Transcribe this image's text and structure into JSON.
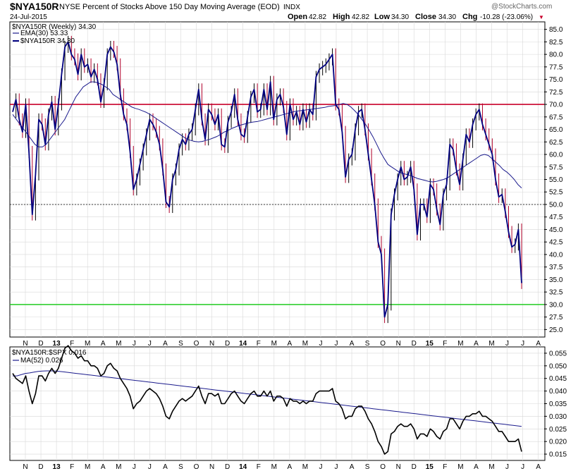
{
  "header": {
    "symbol": "$NYA150R",
    "description": "NYSE Percent of Stocks Above 150 Day Moving Average (EOD)",
    "exchange": "INDX",
    "date": "24-Jul-2015",
    "watermark": "@StockCharts.com",
    "open_label": "Open",
    "open": "42.82",
    "high_label": "High",
    "high": "42.82",
    "low_label": "Low",
    "low": "34.30",
    "close_label": "Close",
    "close": "34.30",
    "chg_label": "Chg",
    "chg": "-10.28 (-23.06%)",
    "chg_arrow": "▼"
  },
  "colors": {
    "price_line": "#000080",
    "ema_line": "#1a1a8c",
    "up_bar": "#000000",
    "down_bar": "#b0002a",
    "red_level": "#c8002a",
    "green_level": "#22cc22",
    "dotted_level": "#000000",
    "ratio_line": "#000000",
    "ma_line": "#1a1a8c",
    "grid": "#d8d8d8"
  },
  "x_axis": {
    "labels": [
      "N",
      "D",
      "13",
      "F",
      "M",
      "A",
      "M",
      "J",
      "J",
      "A",
      "S",
      "O",
      "N",
      "D",
      "14",
      "F",
      "M",
      "A",
      "M",
      "J",
      "J",
      "A",
      "S",
      "O",
      "N",
      "D",
      "15",
      "F",
      "M",
      "A",
      "M",
      "J",
      "J",
      "A"
    ],
    "bold": [
      "13",
      "14",
      "15"
    ]
  },
  "chart_data": [
    {
      "type": "line",
      "title": "$NYA150R (Weekly) 34.30",
      "legend": [
        {
          "name": "EMA(30) 53.33"
        },
        {
          "name": "$NYA150R 34.30"
        }
      ],
      "y_ticks": [
        "85.0",
        "82.5",
        "80.0",
        "77.5",
        "75.0",
        "72.5",
        "70.0",
        "67.5",
        "65.0",
        "62.5",
        "60.0",
        "57.5",
        "55.0",
        "52.5",
        "50.0",
        "47.5",
        "45.0",
        "42.5",
        "40.0",
        "37.5",
        "35.0",
        "32.5",
        "30.0",
        "27.5",
        "25.0"
      ],
      "ylim": [
        23.5,
        86.5
      ],
      "levels": {
        "red": 70,
        "dotted": 50,
        "green": 30
      },
      "x_range": [
        0,
        140
      ],
      "series": [
        {
          "key": "close",
          "values": [
            68.5,
            71.0,
            67.0,
            64.5,
            70.0,
            60.5,
            48.0,
            56.0,
            67.0,
            66.0,
            62.0,
            68.0,
            70.5,
            65.0,
            70.0,
            76.0,
            81.5,
            82.5,
            80.0,
            79.0,
            76.0,
            80.0,
            77.5,
            78.0,
            75.5,
            77.0,
            75.0,
            70.5,
            74.0,
            80.0,
            81.5,
            80.5,
            78.0,
            72.0,
            68.0,
            66.0,
            60.5,
            53.0,
            55.0,
            58.0,
            61.0,
            64.0,
            67.0,
            66.0,
            64.5,
            62.0,
            57.0,
            50.5,
            49.5,
            55.0,
            57.0,
            61.0,
            63.0,
            62.0,
            64.0,
            65.0,
            69.0,
            73.0,
            67.0,
            63.0,
            69.0,
            68.0,
            66.0,
            68.0,
            62.0,
            61.5,
            66.5,
            68.5,
            72.0,
            67.0,
            64.0,
            63.5,
            67.5,
            71.5,
            73.0,
            68.5,
            69.0,
            73.0,
            69.0,
            74.5,
            67.0,
            71.0,
            72.0,
            69.5,
            64.0,
            70.0,
            67.0,
            68.5,
            66.0,
            69.0,
            66.5,
            69.0,
            68.0,
            75.5,
            77.0,
            77.5,
            78.0,
            79.0,
            80.0,
            70.0,
            69.0,
            64.5,
            55.5,
            59.0,
            60.0,
            65.0,
            68.5,
            69.0,
            65.0,
            60.0,
            55.0,
            50.0,
            42.5,
            40.0,
            27.5,
            30.0,
            48.0,
            52.0,
            55.0,
            57.5,
            55.0,
            55.5,
            57.5,
            53.0,
            44.0,
            50.0,
            50.0,
            47.5,
            54.0,
            53.0,
            49.0,
            46.0,
            52.0,
            54.0,
            62.0,
            61.0,
            57.0,
            54.0,
            59.0,
            64.0,
            62.5,
            66.0,
            68.0,
            69.0,
            66.0,
            64.0,
            62.0,
            60.0,
            55.0,
            51.5,
            52.0,
            48.5,
            44.5,
            41.5,
            42.0,
            45.0,
            34.3
          ]
        },
        {
          "key": "ema30",
          "values": [
            68.0,
            67.0,
            66.0,
            65.0,
            64.0,
            63.0,
            62.0,
            61.5,
            61.5,
            62.0,
            63.0,
            64.0,
            65.0,
            66.0,
            67.0,
            68.5,
            70.0,
            71.5,
            72.5,
            73.5,
            74.0,
            74.5,
            74.5,
            74.3,
            74.0,
            73.5,
            73.0,
            72.0,
            71.5,
            71.0,
            70.5,
            70.0,
            69.5,
            69.2,
            69.0,
            68.7,
            68.4,
            68.0,
            67.5,
            67.0,
            66.5,
            66.0,
            65.5,
            65.0,
            64.5,
            64.0,
            63.5,
            63.0,
            62.8,
            62.6,
            62.5,
            62.6,
            62.8,
            63.0,
            63.3,
            63.6,
            64.0,
            64.5,
            64.8,
            65.2,
            65.5,
            65.8,
            66.0,
            66.2,
            66.4,
            66.5,
            66.6,
            66.8,
            67.0,
            67.2,
            67.4,
            67.6,
            67.8,
            68.0,
            68.2,
            68.4,
            68.6,
            68.7,
            68.8,
            68.9,
            69.0,
            69.1,
            69.2,
            69.3,
            69.4,
            69.6,
            69.7,
            69.8,
            70.0,
            70.2,
            70.0,
            69.5,
            68.8,
            68.0,
            67.0,
            66.0,
            64.8,
            63.5,
            62.0,
            60.5,
            59.2,
            58.0,
            57.5,
            57.0,
            56.5,
            56.2,
            56.0,
            55.8,
            55.5,
            55.2,
            55.0,
            54.8,
            54.6,
            54.5,
            54.6,
            54.8,
            55.0,
            55.3,
            55.8,
            56.3,
            56.8,
            57.3,
            57.8,
            58.3,
            58.8,
            59.3,
            59.8,
            60.0,
            59.8,
            59.2,
            58.5,
            57.8,
            57.0,
            56.5,
            55.8,
            55.0,
            54.0,
            53.3
          ]
        }
      ]
    },
    {
      "type": "line",
      "title": "$NYA150R:$SPX 0.016",
      "legend": [
        {
          "name": "MA(52) 0.026"
        }
      ],
      "y_ticks": [
        "0.055",
        "0.050",
        "0.045",
        "0.040",
        "0.035",
        "0.030",
        "0.025",
        "0.020",
        "0.015"
      ],
      "ylim": [
        0.0125,
        0.0575
      ],
      "x_range": [
        0,
        140
      ],
      "series": [
        {
          "key": "ratio",
          "values": [
            0.047,
            0.045,
            0.044,
            0.043,
            0.046,
            0.04,
            0.035,
            0.039,
            0.046,
            0.046,
            0.044,
            0.047,
            0.049,
            0.047,
            0.049,
            0.053,
            0.057,
            0.058,
            0.056,
            0.055,
            0.053,
            0.054,
            0.052,
            0.052,
            0.05,
            0.05,
            0.049,
            0.046,
            0.047,
            0.05,
            0.051,
            0.049,
            0.048,
            0.045,
            0.043,
            0.041,
            0.038,
            0.033,
            0.035,
            0.036,
            0.038,
            0.04,
            0.041,
            0.04,
            0.039,
            0.037,
            0.034,
            0.03,
            0.029,
            0.032,
            0.034,
            0.036,
            0.037,
            0.036,
            0.037,
            0.038,
            0.04,
            0.042,
            0.038,
            0.035,
            0.039,
            0.039,
            0.038,
            0.039,
            0.035,
            0.035,
            0.037,
            0.039,
            0.04,
            0.038,
            0.036,
            0.035,
            0.037,
            0.039,
            0.04,
            0.038,
            0.038,
            0.04,
            0.038,
            0.04,
            0.036,
            0.038,
            0.038,
            0.037,
            0.034,
            0.037,
            0.036,
            0.036,
            0.035,
            0.036,
            0.035,
            0.036,
            0.036,
            0.039,
            0.04,
            0.04,
            0.04,
            0.04,
            0.041,
            0.036,
            0.035,
            0.033,
            0.029,
            0.03,
            0.03,
            0.033,
            0.034,
            0.034,
            0.032,
            0.029,
            0.027,
            0.024,
            0.02,
            0.018,
            0.015,
            0.016,
            0.023,
            0.024,
            0.026,
            0.027,
            0.026,
            0.026,
            0.027,
            0.025,
            0.021,
            0.023,
            0.023,
            0.022,
            0.025,
            0.024,
            0.022,
            0.021,
            0.024,
            0.025,
            0.029,
            0.029,
            0.027,
            0.025,
            0.028,
            0.03,
            0.03,
            0.031,
            0.031,
            0.032,
            0.03,
            0.03,
            0.029,
            0.028,
            0.026,
            0.024,
            0.024,
            0.022,
            0.02,
            0.02,
            0.02,
            0.021,
            0.016
          ]
        },
        {
          "key": "ma52",
          "values": [
            0.046,
            0.046,
            0.0465,
            0.047,
            0.0472,
            0.0475,
            0.0478,
            0.0479,
            0.048,
            0.048,
            0.0479,
            0.0478,
            0.0476,
            0.0474,
            0.0472,
            0.047,
            0.0468,
            0.0466,
            0.0464,
            0.0462,
            0.046,
            0.0458,
            0.0456,
            0.0454,
            0.0452,
            0.045,
            0.0448,
            0.0446,
            0.0444,
            0.0442,
            0.044,
            0.0438,
            0.0436,
            0.0434,
            0.0432,
            0.043,
            0.0428,
            0.0426,
            0.0424,
            0.0422,
            0.042,
            0.0418,
            0.0416,
            0.0414,
            0.0412,
            0.041,
            0.0408,
            0.0406,
            0.0404,
            0.0402,
            0.04,
            0.0398,
            0.0396,
            0.0394,
            0.0392,
            0.039,
            0.0388,
            0.0386,
            0.0384,
            0.0382,
            0.038,
            0.0378,
            0.0376,
            0.0374,
            0.0372,
            0.037,
            0.0368,
            0.0366,
            0.0364,
            0.0362,
            0.036,
            0.0358,
            0.0356,
            0.0354,
            0.0352,
            0.035,
            0.0348,
            0.0346,
            0.0344,
            0.0342,
            0.034,
            0.0338,
            0.0336,
            0.0334,
            0.0332,
            0.033,
            0.0328,
            0.0326,
            0.0324,
            0.0322,
            0.032,
            0.0318,
            0.0316,
            0.0314,
            0.0312,
            0.031,
            0.0308,
            0.0306,
            0.0304,
            0.0302,
            0.03,
            0.0298,
            0.0296,
            0.0294,
            0.0292,
            0.029,
            0.0288,
            0.0286,
            0.0284,
            0.0282,
            0.028,
            0.0278,
            0.0276,
            0.0274,
            0.0272,
            0.027,
            0.0268,
            0.0266,
            0.0264,
            0.0262,
            0.026
          ]
        }
      ]
    }
  ]
}
